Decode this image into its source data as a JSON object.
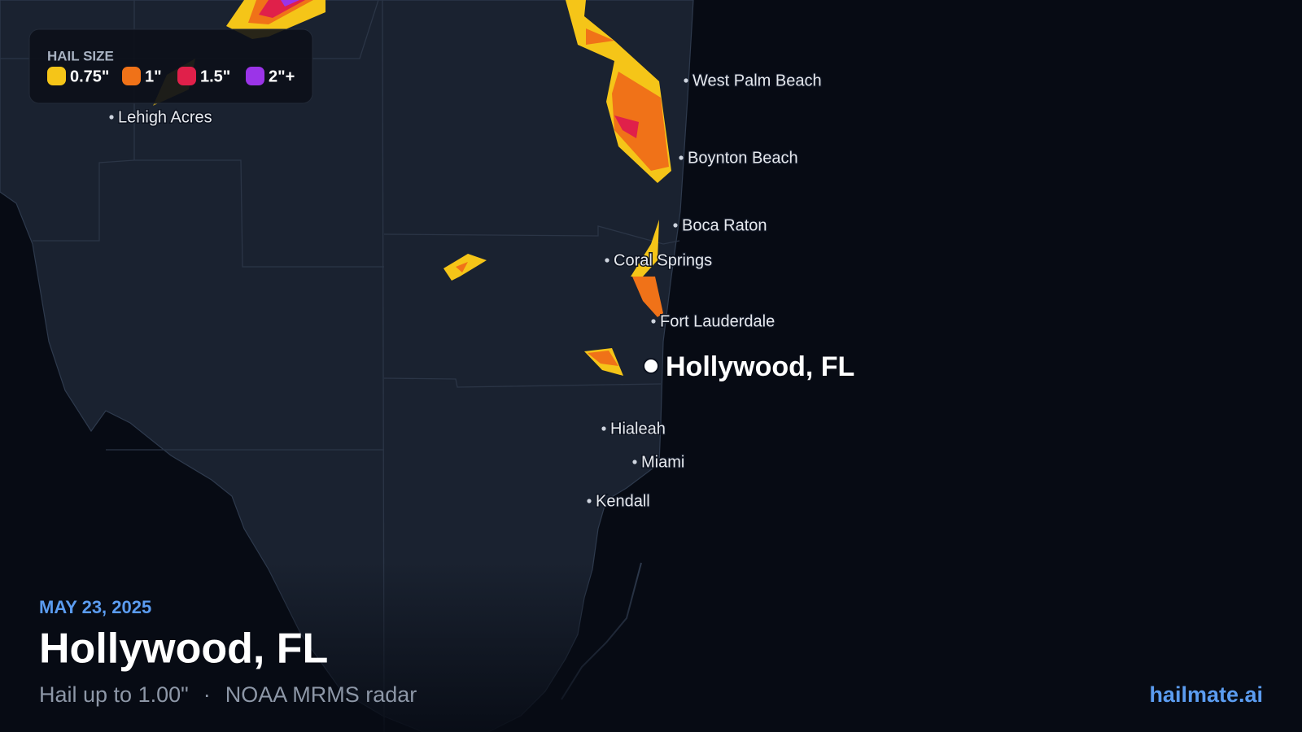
{
  "legend": {
    "title": "HAIL SIZE",
    "items": [
      {
        "label": "0.75\"",
        "color": "#f5c518"
      },
      {
        "label": "1\"",
        "color": "#f07218"
      },
      {
        "label": "1.5\"",
        "color": "#e0204a"
      },
      {
        "label": "2\"+",
        "color": "#9b34e8"
      }
    ]
  },
  "cities": [
    "West Palm Beach",
    "Boynton Beach",
    "Boca Raton",
    "Coral Springs",
    "Fort Lauderdale",
    "Hialeah",
    "Miami",
    "Kendall",
    "Lehigh Acres"
  ],
  "marker": {
    "label": "Hollywood, FL"
  },
  "footer": {
    "date": "MAY 23, 2025",
    "title": "Hollywood, FL",
    "subtitle": "Hail up to 1.00\"",
    "separator": "·",
    "source": "NOAA MRMS radar",
    "brand": "hailmate.ai"
  }
}
